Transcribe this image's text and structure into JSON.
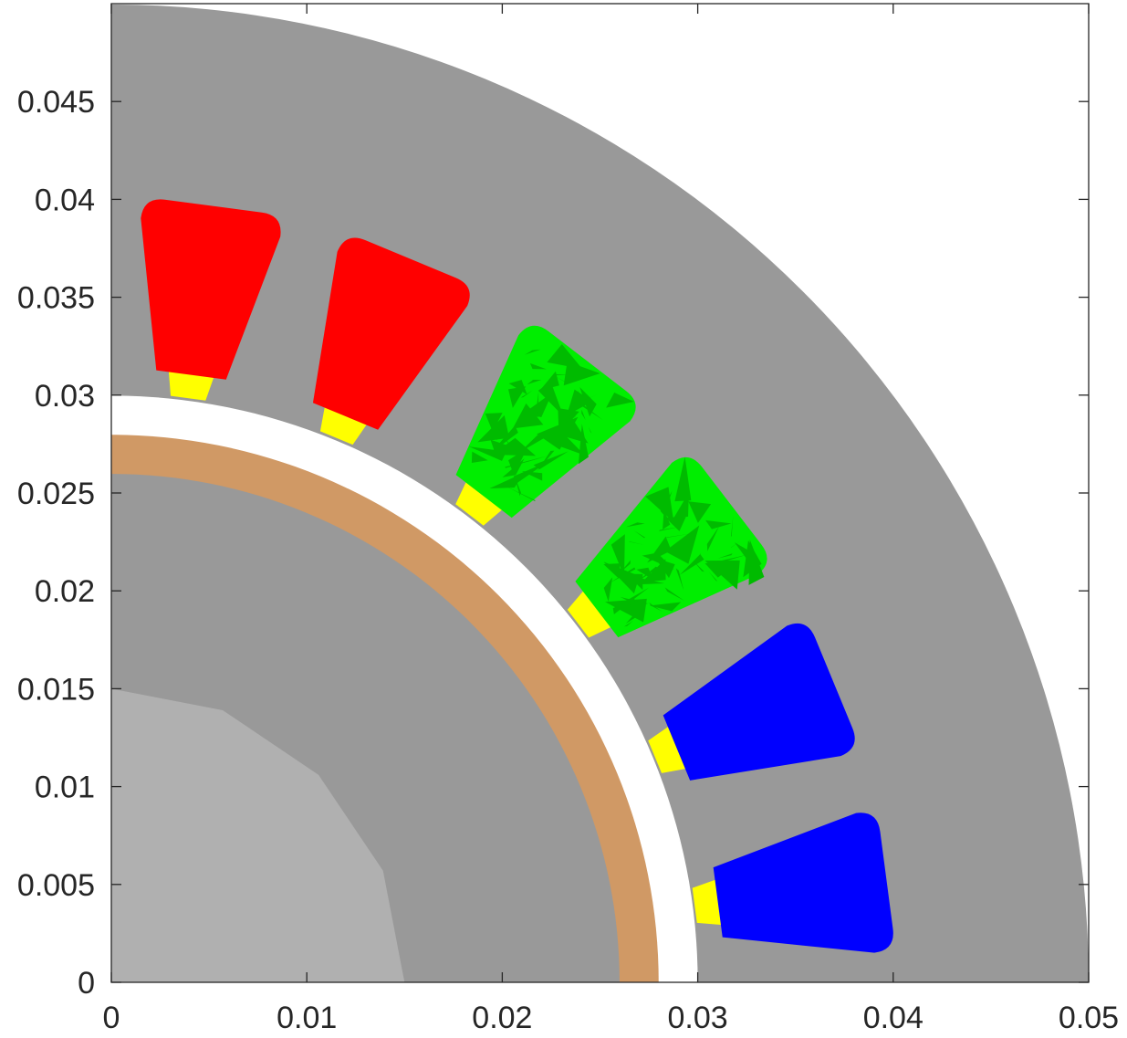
{
  "chart_data": {
    "type": "diagram",
    "xlim": [
      0,
      0.05
    ],
    "ylim": [
      0,
      0.05
    ],
    "x_ticks": [
      {
        "value": 0,
        "label": "0"
      },
      {
        "value": 0.01,
        "label": "0.01"
      },
      {
        "value": 0.02,
        "label": "0.02"
      },
      {
        "value": 0.03,
        "label": "0.03"
      },
      {
        "value": 0.04,
        "label": "0.04"
      },
      {
        "value": 0.05,
        "label": "0.05"
      }
    ],
    "y_ticks": [
      {
        "value": 0,
        "label": "0"
      },
      {
        "value": 0.005,
        "label": "0.005"
      },
      {
        "value": 0.01,
        "label": "0.01"
      },
      {
        "value": 0.015,
        "label": "0.015"
      },
      {
        "value": 0.02,
        "label": "0.02"
      },
      {
        "value": 0.025,
        "label": "0.025"
      },
      {
        "value": 0.03,
        "label": "0.03"
      },
      {
        "value": 0.035,
        "label": "0.035"
      },
      {
        "value": 0.04,
        "label": "0.04"
      },
      {
        "value": 0.045,
        "label": "0.045"
      }
    ],
    "stator_outer_radius": 0.05,
    "air_gap": {
      "inner_radius": 0.028,
      "outer_radius": 0.03
    },
    "magnet_ring": {
      "inner_radius": 0.026,
      "outer_radius": 0.028
    },
    "rotor_core_radius": 0.026,
    "shaft_polygon": [
      [
        0,
        0.015
      ],
      [
        0.0057,
        0.0139
      ],
      [
        0.0106,
        0.0106
      ],
      [
        0.0139,
        0.0057
      ],
      [
        0.015,
        0
      ]
    ],
    "slots": [
      {
        "angle_deg": 82.5,
        "color": "#ff0000"
      },
      {
        "angle_deg": 67.5,
        "color": "#ff0000"
      },
      {
        "angle_deg": 52.5,
        "color": "#00ee00",
        "texture": true
      },
      {
        "angle_deg": 37.5,
        "color": "#00ee00",
        "texture": true
      },
      {
        "angle_deg": 22.5,
        "color": "#0000ff"
      },
      {
        "angle_deg": 7.5,
        "color": "#0000ff"
      }
    ],
    "slot_geometry": {
      "opening_r0": 0.0301,
      "opening_r1": 0.0315,
      "neck_half_width": 0.0009,
      "neck_half_width_outer": 0.0012,
      "coil_r0": 0.0315,
      "coil_r1": 0.04,
      "coil_half_width_inner": 0.0016,
      "coil_half_width_outer": 0.0036,
      "corner_radius": 0.0011
    },
    "colors": {
      "stator": "#999999",
      "rotor_core": "#999999",
      "shaft": "#b0b0b0",
      "air_gap": "#ffffff",
      "magnet": "#d09965",
      "slot_opening": "#ffff00",
      "texture_dark": "#00bb00"
    }
  }
}
